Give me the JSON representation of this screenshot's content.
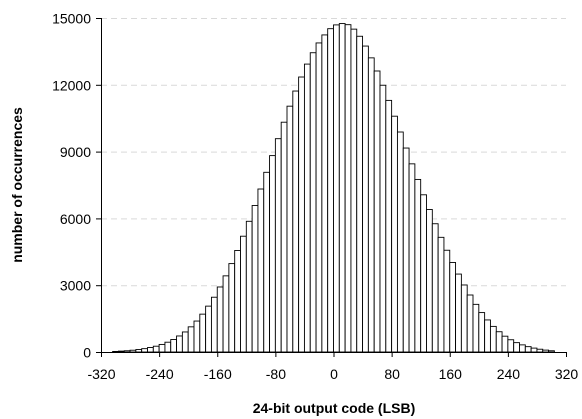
{
  "chart_data": {
    "type": "bar",
    "title": "",
    "xlabel": "24-bit output code (LSB)",
    "ylabel": "number of occurrences",
    "xlim": [
      -320,
      320
    ],
    "ylim": [
      0,
      15000
    ],
    "bin_width": 8,
    "x_ticks": [
      -320,
      -240,
      -160,
      -80,
      0,
      80,
      160,
      240,
      320
    ],
    "x_tick_labels": [
      "-320",
      "-240",
      "-160",
      "-80",
      "0",
      "80",
      "160",
      "240",
      "320"
    ],
    "y_ticks": [
      0,
      3000,
      6000,
      9000,
      12000,
      15000
    ],
    "y_tick_labels": [
      "0",
      "3000",
      "6000",
      "9000",
      "12000",
      "15000"
    ],
    "grid": {
      "horizontal": true,
      "vertical": false,
      "style": "dashed",
      "color": "#d9d9d9"
    },
    "legend": "none",
    "colors": {
      "bar_fill": "#ffffff",
      "bar_edge": "#000000",
      "axis": "#000000"
    },
    "x": [
      -300,
      -292,
      -284,
      -276,
      -268,
      -260,
      -252,
      -244,
      -236,
      -228,
      -220,
      -212,
      -204,
      -196,
      -188,
      -180,
      -172,
      -164,
      -156,
      -148,
      -140,
      -132,
      -124,
      -116,
      -108,
      -100,
      -92,
      -84,
      -76,
      -68,
      -60,
      -52,
      -44,
      -36,
      -28,
      -20,
      -12,
      -4,
      4,
      12,
      20,
      28,
      36,
      44,
      52,
      60,
      68,
      76,
      84,
      92,
      100,
      108,
      116,
      124,
      132,
      140,
      148,
      156,
      164,
      172,
      180,
      188,
      196,
      204,
      212,
      220,
      228,
      236,
      244,
      252,
      260,
      268,
      276,
      284,
      292,
      300
    ],
    "values": [
      25,
      40,
      55,
      80,
      110,
      150,
      200,
      260,
      340,
      440,
      560,
      720,
      900,
      1130,
      1390,
      1700,
      2060,
      2460,
      2920,
      3420,
      3970,
      4560,
      5200,
      5870,
      6580,
      7320,
      8070,
      8820,
      9580,
      10320,
      11040,
      11720,
      12350,
      12930,
      13440,
      13880,
      14240,
      14520,
      14690,
      14750,
      14700,
      14500,
      14180,
      13740,
      13210,
      12620,
      11980,
      11300,
      10590,
      9880,
      9160,
      8450,
      7750,
      7060,
      6400,
      5760,
      5150,
      4570,
      4020,
      3500,
      3010,
      2560,
      2140,
      1770,
      1440,
      1150,
      910,
      710,
      550,
      420,
      320,
      240,
      175,
      125,
      85,
      55
    ]
  }
}
